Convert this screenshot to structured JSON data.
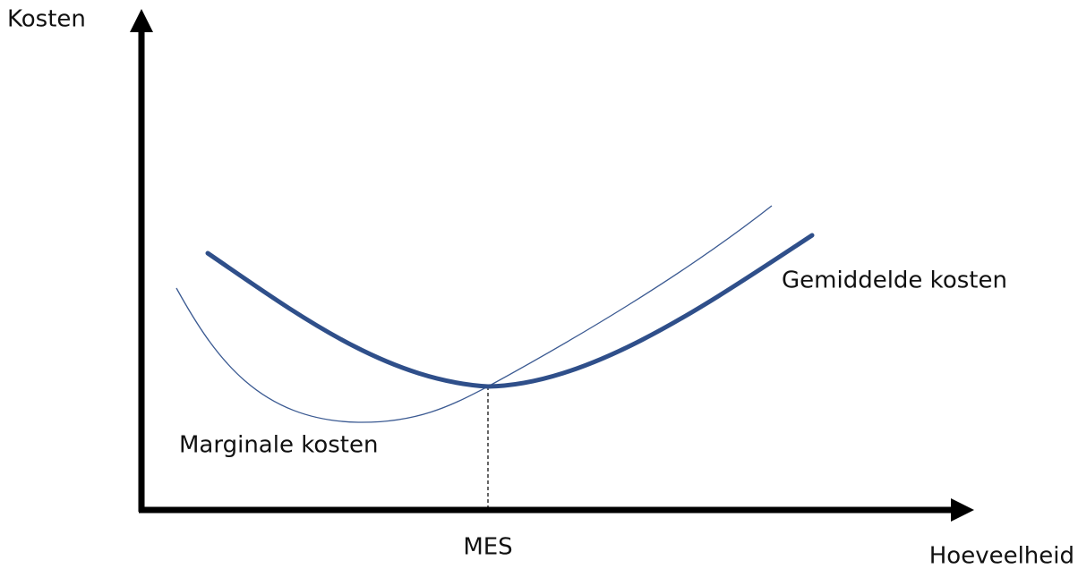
{
  "axes": {
    "y_label": "Kosten",
    "x_label": "Hoeveelheid",
    "x_marker": "MES"
  },
  "curves": {
    "average": "Gemiddelde kosten",
    "marginal": "Marginale kosten"
  }
}
